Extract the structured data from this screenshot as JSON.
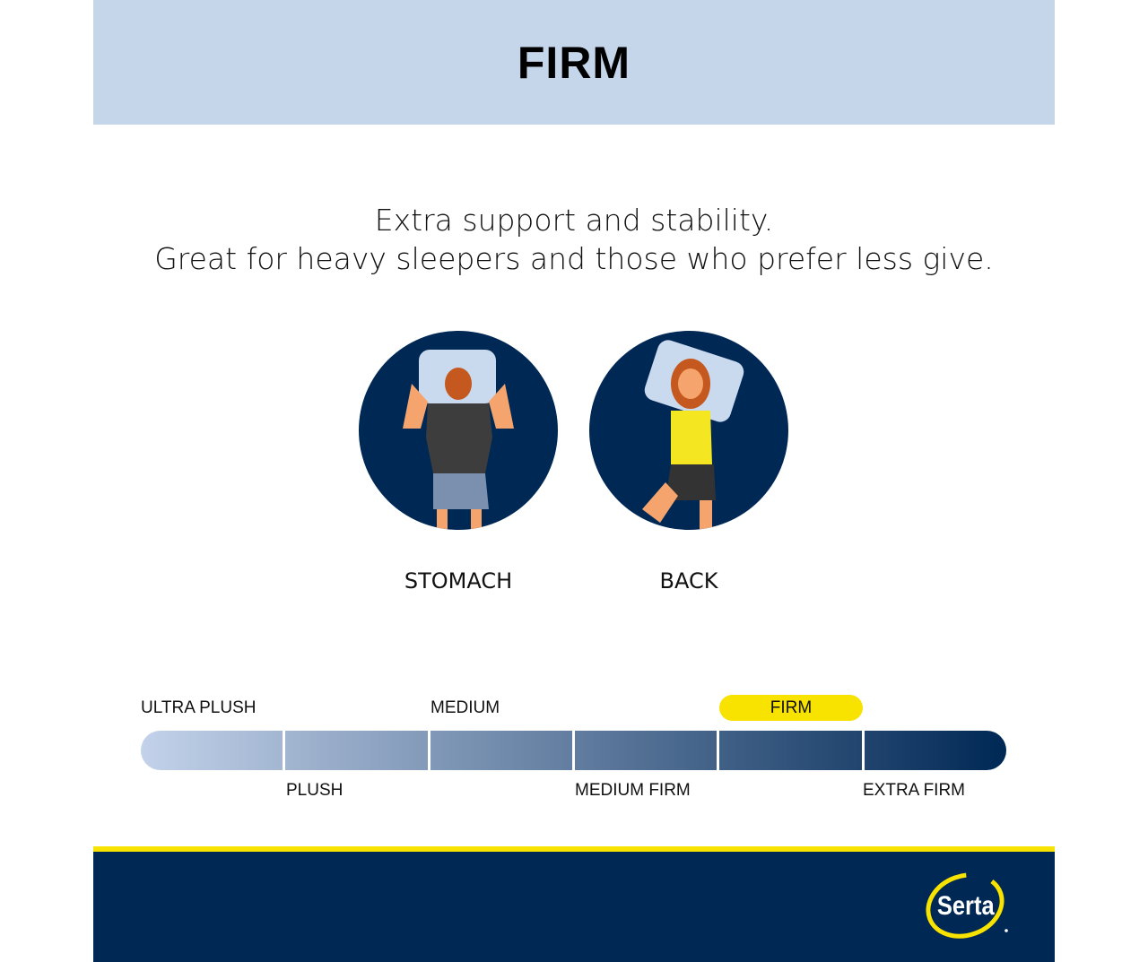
{
  "header": {
    "title": "FIRM"
  },
  "tagline": {
    "line1": "Extra support and stability.",
    "line2": "Great for heavy sleepers and those who prefer less give."
  },
  "positions": [
    {
      "label": "STOMACH",
      "icon": "stomach-sleeper-illustration"
    },
    {
      "label": "BACK",
      "icon": "back-sleeper-illustration"
    }
  ],
  "firmness_scale": {
    "top_labels": [
      "ULTRA PLUSH",
      "MEDIUM",
      "FIRM"
    ],
    "bottom_labels": [
      "PLUSH",
      "MEDIUM FIRM",
      "EXTRA FIRM"
    ],
    "selected": "FIRM",
    "levels": 6
  },
  "footer": {
    "logo": "Serta"
  },
  "colors": {
    "header_bg": "#c5d5ea",
    "navy": "#002855",
    "accent_yellow": "#f7e200"
  }
}
